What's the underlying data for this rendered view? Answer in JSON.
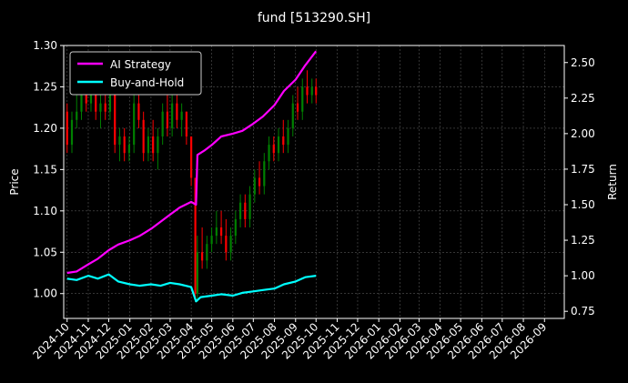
{
  "title": "fund [513290.SH]",
  "chart_data": {
    "type": "line",
    "title": "fund [513290.SH]",
    "xlabel": "",
    "ylabel_left": "Price",
    "ylabel_right": "Return",
    "ylim_left": [
      0.97,
      1.3
    ],
    "ylim_right": [
      0.7,
      2.62
    ],
    "xlim": [
      "2024-09-26",
      "2026-09-30"
    ],
    "grid": true,
    "legend_position": "upper-left",
    "x_tick_labels": [
      "2024-10",
      "2024-11",
      "2024-12",
      "2025-01",
      "2025-02",
      "2025-03",
      "2025-04",
      "2025-05",
      "2025-06",
      "2025-07",
      "2025-08",
      "2025-09",
      "2025-10",
      "2025-11",
      "2025-12",
      "2026-01",
      "2026-02",
      "2026-03",
      "2026-04",
      "2026-05",
      "2026-06",
      "2026-07",
      "2026-08",
      "2026-09"
    ],
    "y_left_ticks": [
      1.0,
      1.05,
      1.1,
      1.15,
      1.2,
      1.25,
      1.3
    ],
    "y_left_tick_labels": [
      "1.00",
      "1.05",
      "1.10",
      "1.15",
      "1.20",
      "1.25",
      "1.30"
    ],
    "y_right_ticks": [
      0.75,
      1.0,
      1.25,
      1.5,
      1.75,
      2.0,
      2.25,
      2.5
    ],
    "y_right_tick_labels": [
      "0.75",
      "1.00",
      "1.25",
      "1.50",
      "1.75",
      "2.00",
      "2.25",
      "2.50"
    ],
    "series": [
      {
        "name": "AI Strategy",
        "axis": "right",
        "color": "#ff00ff",
        "points": [
          [
            "2024-10-01",
            1.02
          ],
          [
            "2024-10-15",
            1.03
          ],
          [
            "2024-11-01",
            1.08
          ],
          [
            "2024-11-15",
            1.12
          ],
          [
            "2024-12-01",
            1.18
          ],
          [
            "2024-12-15",
            1.22
          ],
          [
            "2025-01-01",
            1.25
          ],
          [
            "2025-01-15",
            1.28
          ],
          [
            "2025-02-01",
            1.33
          ],
          [
            "2025-02-15",
            1.38
          ],
          [
            "2025-03-01",
            1.43
          ],
          [
            "2025-03-15",
            1.48
          ],
          [
            "2025-04-01",
            1.52
          ],
          [
            "2025-04-08",
            1.5
          ],
          [
            "2025-04-10",
            1.85
          ],
          [
            "2025-04-20",
            1.88
          ],
          [
            "2025-05-01",
            1.92
          ],
          [
            "2025-05-15",
            1.98
          ],
          [
            "2025-06-01",
            2.0
          ],
          [
            "2025-06-15",
            2.02
          ],
          [
            "2025-07-01",
            2.07
          ],
          [
            "2025-07-15",
            2.12
          ],
          [
            "2025-08-01",
            2.2
          ],
          [
            "2025-08-15",
            2.3
          ],
          [
            "2025-09-01",
            2.38
          ],
          [
            "2025-09-15",
            2.48
          ],
          [
            "2025-10-01",
            2.58
          ]
        ]
      },
      {
        "name": "Buy-and-Hold",
        "axis": "right",
        "color": "#00ffff",
        "points": [
          [
            "2024-10-01",
            0.98
          ],
          [
            "2024-10-15",
            0.97
          ],
          [
            "2024-11-01",
            1.0
          ],
          [
            "2024-11-15",
            0.98
          ],
          [
            "2024-12-01",
            1.01
          ],
          [
            "2024-12-15",
            0.96
          ],
          [
            "2025-01-01",
            0.94
          ],
          [
            "2025-01-15",
            0.93
          ],
          [
            "2025-02-01",
            0.94
          ],
          [
            "2025-02-15",
            0.93
          ],
          [
            "2025-03-01",
            0.95
          ],
          [
            "2025-03-15",
            0.94
          ],
          [
            "2025-04-01",
            0.92
          ],
          [
            "2025-04-08",
            0.82
          ],
          [
            "2025-04-15",
            0.85
          ],
          [
            "2025-05-01",
            0.86
          ],
          [
            "2025-05-15",
            0.87
          ],
          [
            "2025-06-01",
            0.86
          ],
          [
            "2025-06-15",
            0.88
          ],
          [
            "2025-07-01",
            0.89
          ],
          [
            "2025-07-15",
            0.9
          ],
          [
            "2025-08-01",
            0.91
          ],
          [
            "2025-08-15",
            0.94
          ],
          [
            "2025-09-01",
            0.96
          ],
          [
            "2025-09-15",
            0.99
          ],
          [
            "2025-10-01",
            1.0
          ]
        ]
      }
    ],
    "candles": {
      "axis": "left",
      "up_color": "#008000",
      "down_color": "#ff0000",
      "ohlc": [
        [
          "2024-10-01",
          1.22,
          1.23,
          1.17,
          1.18
        ],
        [
          "2024-10-08",
          1.18,
          1.22,
          1.17,
          1.21
        ],
        [
          "2024-10-15",
          1.21,
          1.24,
          1.2,
          1.22
        ],
        [
          "2024-10-22",
          1.22,
          1.26,
          1.21,
          1.25
        ],
        [
          "2024-10-29",
          1.25,
          1.27,
          1.22,
          1.23
        ],
        [
          "2024-11-05",
          1.23,
          1.28,
          1.22,
          1.26
        ],
        [
          "2024-11-12",
          1.26,
          1.27,
          1.21,
          1.22
        ],
        [
          "2024-11-19",
          1.22,
          1.24,
          1.2,
          1.23
        ],
        [
          "2024-11-26",
          1.23,
          1.25,
          1.21,
          1.22
        ],
        [
          "2024-12-03",
          1.22,
          1.27,
          1.21,
          1.26
        ],
        [
          "2024-12-10",
          1.26,
          1.27,
          1.17,
          1.18
        ],
        [
          "2024-12-17",
          1.18,
          1.2,
          1.16,
          1.19
        ],
        [
          "2024-12-24",
          1.19,
          1.2,
          1.16,
          1.17
        ],
        [
          "2024-12-31",
          1.17,
          1.19,
          1.16,
          1.18
        ],
        [
          "2025-01-07",
          1.18,
          1.24,
          1.17,
          1.23
        ],
        [
          "2025-01-14",
          1.23,
          1.24,
          1.2,
          1.21
        ],
        [
          "2025-01-21",
          1.21,
          1.22,
          1.16,
          1.17
        ],
        [
          "2025-01-28",
          1.17,
          1.2,
          1.16,
          1.19
        ],
        [
          "2025-02-04",
          1.19,
          1.21,
          1.16,
          1.17
        ],
        [
          "2025-02-11",
          1.17,
          1.2,
          1.15,
          1.19
        ],
        [
          "2025-02-18",
          1.19,
          1.23,
          1.18,
          1.22
        ],
        [
          "2025-02-25",
          1.22,
          1.24,
          1.19,
          1.2
        ],
        [
          "2025-03-04",
          1.2,
          1.24,
          1.19,
          1.23
        ],
        [
          "2025-03-11",
          1.23,
          1.24,
          1.2,
          1.21
        ],
        [
          "2025-03-18",
          1.21,
          1.23,
          1.19,
          1.22
        ],
        [
          "2025-03-25",
          1.22,
          1.22,
          1.18,
          1.19
        ],
        [
          "2025-04-01",
          1.19,
          1.19,
          1.13,
          1.14
        ],
        [
          "2025-04-07",
          1.14,
          1.14,
          0.99,
          1.0
        ],
        [
          "2025-04-10",
          1.0,
          1.07,
          0.99,
          1.05
        ],
        [
          "2025-04-17",
          1.05,
          1.08,
          1.03,
          1.04
        ],
        [
          "2025-04-24",
          1.04,
          1.07,
          1.03,
          1.06
        ],
        [
          "2025-05-01",
          1.06,
          1.08,
          1.05,
          1.07
        ],
        [
          "2025-05-08",
          1.07,
          1.1,
          1.06,
          1.08
        ],
        [
          "2025-05-15",
          1.08,
          1.1,
          1.06,
          1.07
        ],
        [
          "2025-05-22",
          1.07,
          1.09,
          1.04,
          1.05
        ],
        [
          "2025-05-29",
          1.05,
          1.08,
          1.04,
          1.07
        ],
        [
          "2025-06-05",
          1.07,
          1.1,
          1.06,
          1.09
        ],
        [
          "2025-06-12",
          1.09,
          1.12,
          1.08,
          1.11
        ],
        [
          "2025-06-19",
          1.11,
          1.12,
          1.08,
          1.09
        ],
        [
          "2025-06-26",
          1.09,
          1.13,
          1.08,
          1.12
        ],
        [
          "2025-07-03",
          1.12,
          1.15,
          1.11,
          1.14
        ],
        [
          "2025-07-10",
          1.14,
          1.16,
          1.12,
          1.13
        ],
        [
          "2025-07-17",
          1.13,
          1.17,
          1.12,
          1.16
        ],
        [
          "2025-07-24",
          1.16,
          1.19,
          1.15,
          1.18
        ],
        [
          "2025-07-31",
          1.18,
          1.19,
          1.16,
          1.17
        ],
        [
          "2025-08-07",
          1.17,
          1.2,
          1.16,
          1.19
        ],
        [
          "2025-08-14",
          1.19,
          1.21,
          1.17,
          1.18
        ],
        [
          "2025-08-21",
          1.18,
          1.21,
          1.17,
          1.2
        ],
        [
          "2025-08-28",
          1.2,
          1.24,
          1.19,
          1.23
        ],
        [
          "2025-09-04",
          1.23,
          1.25,
          1.21,
          1.22
        ],
        [
          "2025-09-11",
          1.22,
          1.26,
          1.21,
          1.25
        ],
        [
          "2025-09-18",
          1.25,
          1.27,
          1.23,
          1.24
        ],
        [
          "2025-09-25",
          1.24,
          1.26,
          1.23,
          1.25
        ],
        [
          "2025-10-01",
          1.25,
          1.26,
          1.23,
          1.24
        ]
      ]
    }
  },
  "legend": {
    "items": [
      {
        "label": "AI Strategy",
        "color": "#ff00ff"
      },
      {
        "label": "Buy-and-Hold",
        "color": "#00ffff"
      }
    ]
  }
}
